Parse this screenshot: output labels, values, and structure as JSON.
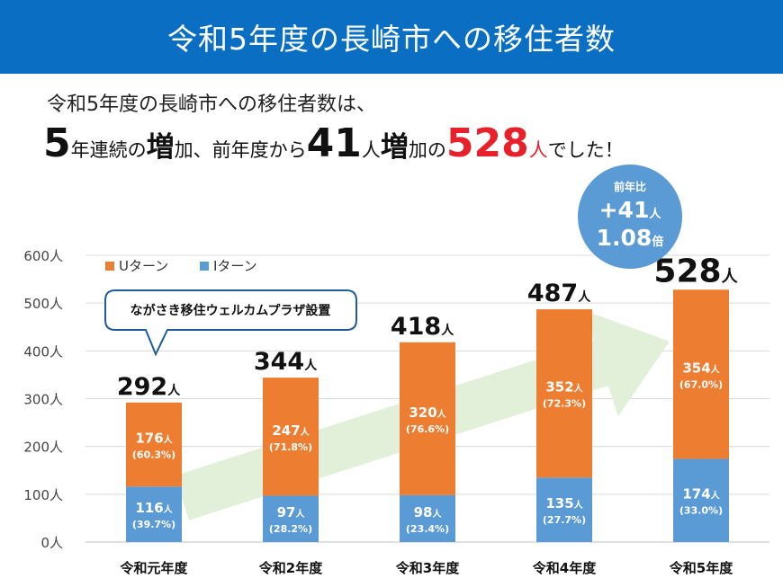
{
  "banner": {
    "title": "令和5年度の長崎市への移住者数"
  },
  "summary": {
    "line1": "令和5年度の長崎市への移住者数は、",
    "years": "5",
    "p1": "年連続の",
    "zou": "増",
    "p2": "加、前年度から",
    "diff": "41",
    "unit1": "人",
    "p3a": "増",
    "p3b": "加の",
    "total": "528",
    "unit2": "人",
    "p4": "でした！"
  },
  "callouts": {
    "plaza": "ながさき移住ウェルカムプラザ設置",
    "yoy_title": "前年比",
    "yoy_plus": "+41",
    "yoy_plus_unit": "人",
    "yoy_ratio": "1.08",
    "yoy_ratio_unit": "倍"
  },
  "colors": {
    "banner": "#0a6fc2",
    "u_turn": "#ed7d31",
    "i_turn": "#5b9bd5",
    "arrow": "#e2f0d9",
    "accent_red": "#e8202a"
  },
  "chart_data": {
    "type": "bar",
    "stacked": true,
    "categories": [
      "令和元年度",
      "令和2年度",
      "令和3年度",
      "令和4年度",
      "令和5年度"
    ],
    "series": [
      {
        "name": "Iターン",
        "values": [
          116,
          97,
          98,
          135,
          174
        ],
        "labels": [
          "116",
          "97",
          "98",
          "135",
          "174"
        ],
        "pct": [
          "(39.7%)",
          "(28.2%)",
          "(23.4%)",
          "(27.7%)",
          "(33.0%)"
        ]
      },
      {
        "name": "Uターン",
        "values": [
          176,
          247,
          320,
          352,
          354
        ],
        "labels": [
          "176",
          "247",
          "320",
          "352",
          "354"
        ],
        "pct": [
          "(60.3%)",
          "(71.8%)",
          "(76.6%)",
          "(72.3%)",
          "(67.0%)"
        ]
      }
    ],
    "totals": [
      292,
      344,
      418,
      487,
      528
    ],
    "total_labels": [
      "292",
      "344",
      "418",
      "487",
      "528"
    ],
    "unit": "人",
    "ylim": [
      0,
      600
    ],
    "yticks": [
      "0人",
      "100人",
      "200人",
      "300人",
      "400人",
      "500人",
      "600人"
    ],
    "legend": [
      "Uターン",
      "Iターン"
    ],
    "legend_position": "top-left",
    "grid": true
  }
}
